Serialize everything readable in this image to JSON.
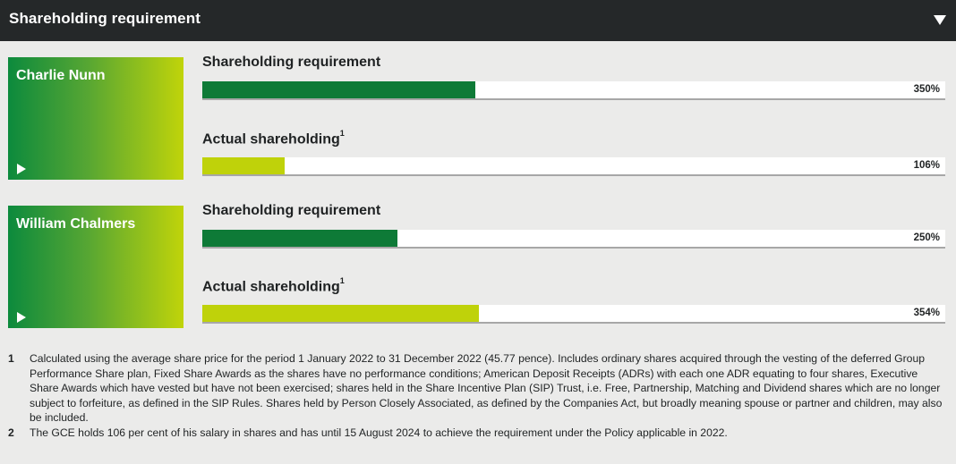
{
  "header": {
    "title": "Shareholding requirement"
  },
  "people": [
    {
      "name": "Charlie Nunn",
      "metrics": [
        {
          "label": "Shareholding requirement",
          "sup": "",
          "value_label": "350%",
          "fill_fraction": 0.368,
          "kind": "req"
        },
        {
          "label": "Actual shareholding",
          "sup": "1",
          "value_label": "106%",
          "fill_fraction": 0.111,
          "kind": "act"
        }
      ]
    },
    {
      "name": "William Chalmers",
      "metrics": [
        {
          "label": "Shareholding requirement",
          "sup": "",
          "value_label": "250%",
          "fill_fraction": 0.263,
          "kind": "req"
        },
        {
          "label": "Actual shareholding",
          "sup": "1",
          "value_label": "354%",
          "fill_fraction": 0.372,
          "kind": "act"
        }
      ]
    }
  ],
  "footnotes": [
    {
      "num": "1",
      "text": "Calculated using the average share price for the period 1 January 2022 to 31 December 2022 (45.77 pence). Includes ordinary shares acquired through the vesting of the deferred Group Performance Share plan, Fixed Share Awards as the shares have no performance conditions; American Deposit Receipts (ADRs) with each one ADR equating to four shares, Executive Share Awards which have vested but have not been exercised; shares held in the Share Incentive Plan (SIP) Trust, i.e. Free, Partnership, Matching and Dividend shares which are no longer subject to forfeiture, as defined in the SIP Rules. Shares held by Person Closely Associated, as defined by the Companies Act, but broadly meaning spouse or partner and children, may also be included."
    },
    {
      "num": "2",
      "text": "The GCE holds 106 per cent of his salary in shares and has until 15 August 2024 to achieve the requirement under the Policy applicable in 2022."
    }
  ],
  "icons": {
    "collapse": "triangle-down-icon",
    "expand": "play-icon"
  },
  "colors": {
    "header_bg": "#252829",
    "requirement_bar": "#0e7a37",
    "actual_bar": "#bfd20a",
    "page_bg": "#ebebea"
  }
}
